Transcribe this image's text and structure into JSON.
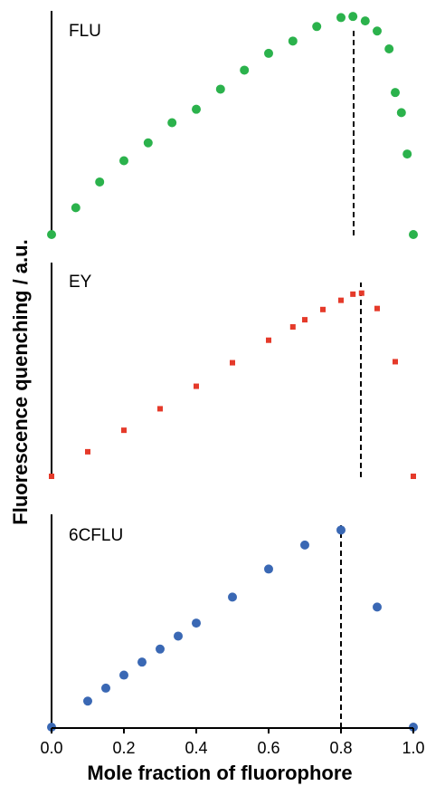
{
  "figure": {
    "ylabel": "Fluorescence quenching / a.u.",
    "xlabel": "Mole fraction of fluorophore",
    "xticks": [
      "0.0",
      "0.2",
      "0.4",
      "0.6",
      "0.8",
      "1.0"
    ]
  },
  "chart_data": [
    {
      "type": "scatter",
      "panel_label": "FLU",
      "color": "#2bb24c",
      "marker": "circle",
      "xlim": [
        0,
        1
      ],
      "ylim": [
        0,
        1
      ],
      "vline_x": 0.835,
      "points": [
        {
          "x": 0.0,
          "y": 0.0
        },
        {
          "x": 0.067,
          "y": 0.12
        },
        {
          "x": 0.133,
          "y": 0.235
        },
        {
          "x": 0.2,
          "y": 0.33
        },
        {
          "x": 0.267,
          "y": 0.41
        },
        {
          "x": 0.333,
          "y": 0.5
        },
        {
          "x": 0.4,
          "y": 0.56
        },
        {
          "x": 0.467,
          "y": 0.65
        },
        {
          "x": 0.533,
          "y": 0.735
        },
        {
          "x": 0.6,
          "y": 0.81
        },
        {
          "x": 0.667,
          "y": 0.865
        },
        {
          "x": 0.733,
          "y": 0.93
        },
        {
          "x": 0.8,
          "y": 0.97
        },
        {
          "x": 0.833,
          "y": 0.975
        },
        {
          "x": 0.867,
          "y": 0.955
        },
        {
          "x": 0.9,
          "y": 0.91
        },
        {
          "x": 0.933,
          "y": 0.83
        },
        {
          "x": 0.95,
          "y": 0.635
        },
        {
          "x": 0.967,
          "y": 0.545
        },
        {
          "x": 0.983,
          "y": 0.36
        },
        {
          "x": 1.0,
          "y": 0.0
        }
      ]
    },
    {
      "type": "scatter",
      "panel_label": "EY",
      "color": "#e53a2a",
      "marker": "square",
      "xlim": [
        0,
        1
      ],
      "ylim": [
        0,
        1
      ],
      "vline_x": 0.855,
      "points": [
        {
          "x": 0.0,
          "y": 0.0
        },
        {
          "x": 0.1,
          "y": 0.12
        },
        {
          "x": 0.2,
          "y": 0.225
        },
        {
          "x": 0.3,
          "y": 0.33
        },
        {
          "x": 0.4,
          "y": 0.44
        },
        {
          "x": 0.5,
          "y": 0.555
        },
        {
          "x": 0.6,
          "y": 0.665
        },
        {
          "x": 0.667,
          "y": 0.73
        },
        {
          "x": 0.7,
          "y": 0.765
        },
        {
          "x": 0.75,
          "y": 0.815
        },
        {
          "x": 0.8,
          "y": 0.86
        },
        {
          "x": 0.833,
          "y": 0.89
        },
        {
          "x": 0.857,
          "y": 0.895
        },
        {
          "x": 0.9,
          "y": 0.82
        },
        {
          "x": 0.95,
          "y": 0.56
        },
        {
          "x": 1.0,
          "y": 0.0
        }
      ]
    },
    {
      "type": "scatter",
      "panel_label": "6CFLU",
      "color": "#3a68b4",
      "marker": "circle",
      "xlim": [
        0,
        1
      ],
      "ylim": [
        0,
        1
      ],
      "vline_x": 0.8,
      "points": [
        {
          "x": 0.0,
          "y": 0.0
        },
        {
          "x": 0.1,
          "y": 0.13
        },
        {
          "x": 0.15,
          "y": 0.195
        },
        {
          "x": 0.2,
          "y": 0.26
        },
        {
          "x": 0.25,
          "y": 0.325
        },
        {
          "x": 0.3,
          "y": 0.39
        },
        {
          "x": 0.35,
          "y": 0.455
        },
        {
          "x": 0.4,
          "y": 0.52
        },
        {
          "x": 0.5,
          "y": 0.65
        },
        {
          "x": 0.6,
          "y": 0.79
        },
        {
          "x": 0.7,
          "y": 0.91
        },
        {
          "x": 0.8,
          "y": 0.985
        },
        {
          "x": 0.9,
          "y": 0.6
        },
        {
          "x": 1.0,
          "y": 0.0
        }
      ]
    }
  ]
}
